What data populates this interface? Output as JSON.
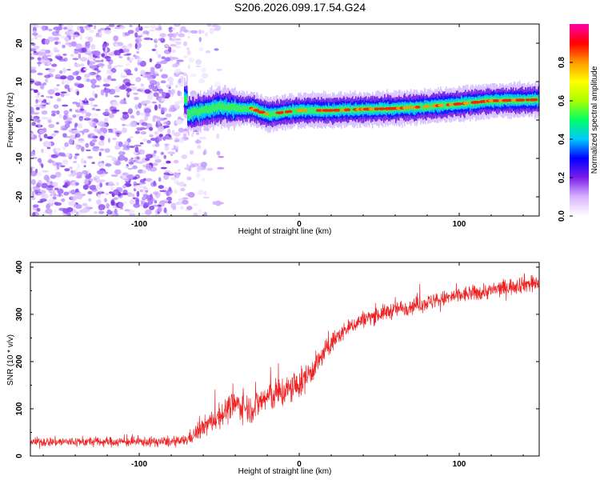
{
  "title": "S206.2026.099.17.54.G24",
  "chart_data": [
    {
      "type": "heatmap",
      "xlabel": "Height of straight line (km)",
      "ylabel": "Frequency (Hz)",
      "xlim": [
        -168,
        150
      ],
      "ylim": [
        -25,
        25
      ],
      "xticks": [
        -100,
        0,
        100
      ],
      "yticks": [
        -20,
        -10,
        0,
        10,
        20
      ],
      "colorbar": {
        "label": "Normalized spectral amplitude",
        "range": [
          0,
          1
        ],
        "ticks": [
          "0.0",
          "0.2",
          "0.4",
          "0.6",
          "0.8"
        ],
        "colors": [
          "#ffffff",
          "#d9b3ff",
          "#7b1fe8",
          "#0000ff",
          "#00c8ff",
          "#00ff66",
          "#aaff00",
          "#ffff00",
          "#ff9900",
          "#ff0000",
          "#ff00aa"
        ]
      },
      "signal_track": [
        {
          "x": -70,
          "freq": 1.5
        },
        {
          "x": -60,
          "freq": 2.5
        },
        {
          "x": -50,
          "freq": 3.5
        },
        {
          "x": -40,
          "freq": 3.0
        },
        {
          "x": -30,
          "freq": 3.0
        },
        {
          "x": -20,
          "freq": 1.5
        },
        {
          "x": -10,
          "freq": 2.0
        },
        {
          "x": 0,
          "freq": 2.5
        },
        {
          "x": 20,
          "freq": 2.5
        },
        {
          "x": 40,
          "freq": 2.8
        },
        {
          "x": 60,
          "freq": 3.0
        },
        {
          "x": 80,
          "freq": 3.5
        },
        {
          "x": 100,
          "freq": 4.2
        },
        {
          "x": 120,
          "freq": 5.0
        },
        {
          "x": 140,
          "freq": 5.2
        },
        {
          "x": 150,
          "freq": 5.3
        }
      ]
    },
    {
      "type": "line",
      "xlabel": "Height of straight line (km)",
      "ylabel": "SNR (10 * v/v)",
      "xlim": [
        -168,
        150
      ],
      "ylim": [
        0,
        410
      ],
      "xticks": [
        -100,
        0,
        100
      ],
      "yticks": [
        0,
        100,
        200,
        300,
        400
      ],
      "series": [
        {
          "name": "SNR",
          "color": "#ee2222",
          "x": [
            -168,
            -150,
            -130,
            -110,
            -90,
            -75,
            -70,
            -60,
            -50,
            -40,
            -30,
            -20,
            -10,
            0,
            10,
            20,
            30,
            40,
            60,
            80,
            100,
            120,
            140,
            150
          ],
          "y": [
            30,
            30,
            30,
            30,
            30,
            30,
            35,
            60,
            85,
            110,
            100,
            125,
            135,
            150,
            190,
            240,
            270,
            290,
            310,
            325,
            340,
            350,
            365,
            365
          ],
          "noise": [
            12,
            12,
            12,
            12,
            12,
            12,
            15,
            25,
            30,
            35,
            35,
            40,
            40,
            35,
            30,
            25,
            20,
            20,
            20,
            20,
            20,
            20,
            22,
            22
          ]
        }
      ]
    }
  ]
}
